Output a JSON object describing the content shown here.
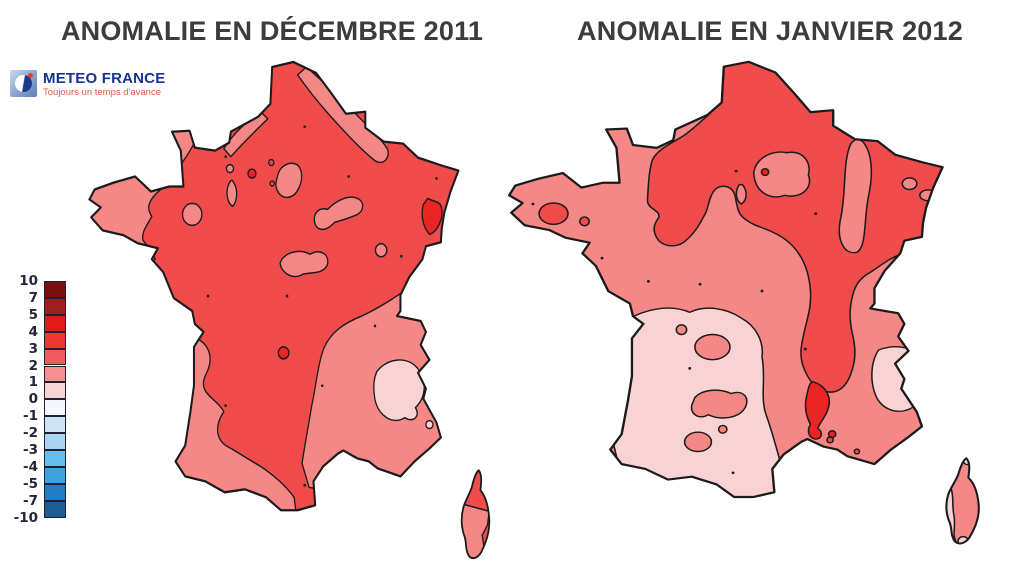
{
  "theme": {
    "background": "#FFFFFF",
    "title_color": "#3C3C3C",
    "logo_blue": "#17338F",
    "logo_red": "#E85640",
    "legend_text": "#24243A"
  },
  "maps": [
    {
      "title": "ANOMALIE EN DÉCEMBRE 2011"
    },
    {
      "title": "ANOMALIE EN JANVIER 2012"
    }
  ],
  "logo": {
    "name": "METEO FRANCE",
    "tagline": "Toujours un temps d'avance"
  },
  "legend": {
    "tick_labels": [
      "10",
      "7",
      "5",
      "4",
      "3",
      "2",
      "1",
      "0",
      "-1",
      "-2",
      "-3",
      "-4",
      "-5",
      "-7",
      "-10"
    ],
    "bands": [
      {
        "label": "7 to 10",
        "color": "#7A0F10",
        "texture": null
      },
      {
        "label": "5 to 7",
        "color": "#9C1F1D",
        "texture": "dark"
      },
      {
        "label": "4 to 5",
        "color": "#E31B17",
        "texture": null
      },
      {
        "label": "3 to 4",
        "color": "#EF3434",
        "texture": null
      },
      {
        "label": "2 to 3",
        "color": "#F05A5A",
        "texture": null
      },
      {
        "label": "1 to 2",
        "color": "#F69090",
        "texture": null
      },
      {
        "label": "0 to 1",
        "color": "#F9D3D3",
        "texture": null
      },
      {
        "label": "-1 to 0",
        "color": "#F4F8FC",
        "texture": "blue"
      },
      {
        "label": "-2 to -1",
        "color": "#CBE4F8",
        "texture": null
      },
      {
        "label": "-3 to -2",
        "color": "#A9D5F3",
        "texture": null
      },
      {
        "label": "-4 to -3",
        "color": "#67BFEF",
        "texture": "light"
      },
      {
        "label": "-5 to -4",
        "color": "#3AA3E0",
        "texture": "light"
      },
      {
        "label": "-7 to -5",
        "color": "#1F7EC3",
        "texture": null
      },
      {
        "label": "-10 to -7",
        "color": "#1E5D94",
        "texture": null
      }
    ]
  },
  "map_colors": {
    "band_3_4": "#EC2424",
    "band_2_3": "#F04C4C",
    "band_1_2": "#F68787",
    "band_0_1": "#F9D3D3",
    "outline": "#1B1B1B"
  }
}
